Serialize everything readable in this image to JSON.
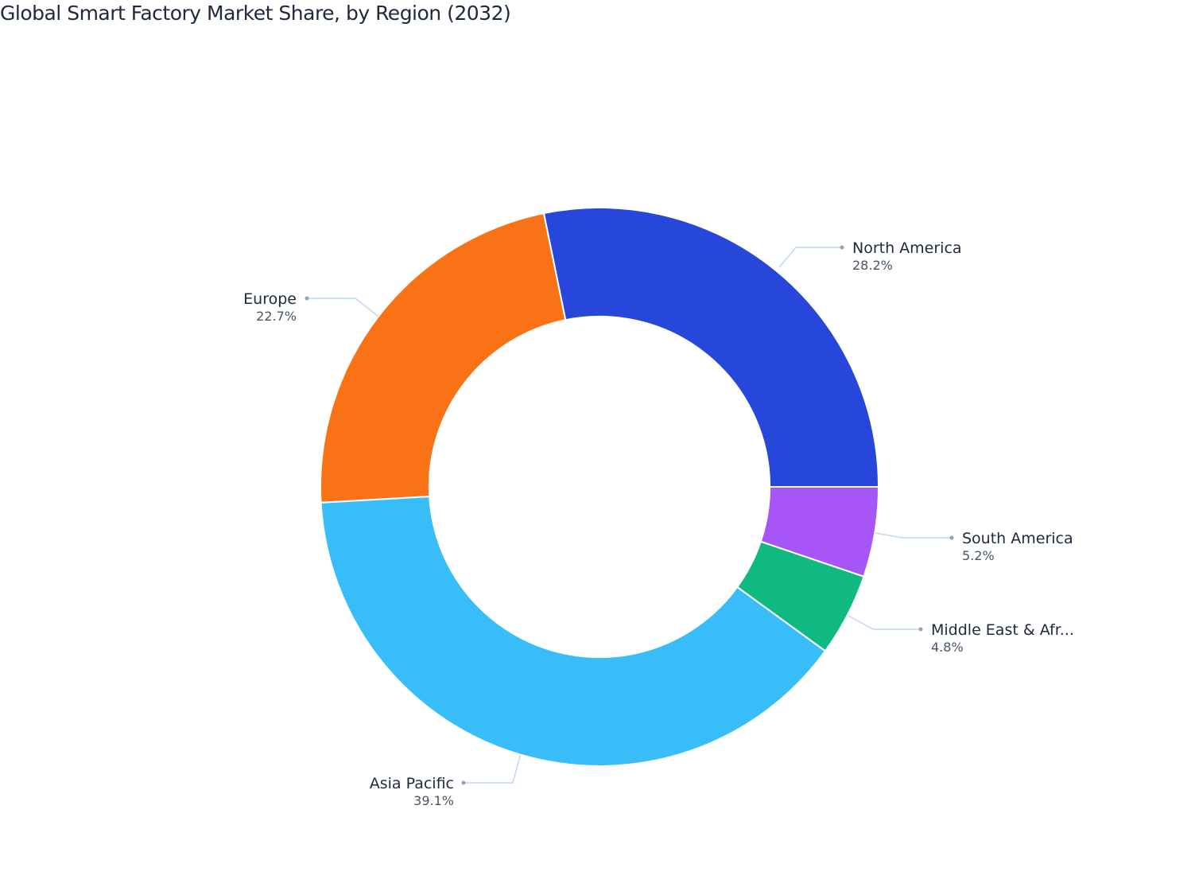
{
  "title": "Global Smart Factory Market Share, by Region (2032)",
  "chart_data": {
    "type": "pie",
    "subtype": "donut",
    "title": "Global Smart Factory Market Share, by Region (2032)",
    "categories": [
      "North America",
      "Europe",
      "Asia Pacific",
      "Middle East & Africa",
      "South America"
    ],
    "values": [
      28.2,
      22.7,
      39.1,
      4.8,
      5.2
    ],
    "unit": "%",
    "colors": [
      "#2746da",
      "#f97316",
      "#38bdf8",
      "#10b981",
      "#a855f7"
    ],
    "hole": 0.61,
    "start_angle_deg": 0,
    "direction": "counterclockwise",
    "legend": "none (outside labels with leader lines)"
  },
  "labels": [
    {
      "name": "North America",
      "display_name": "North America",
      "pct": "28.2%"
    },
    {
      "name": "Europe",
      "display_name": "Europe",
      "pct": "22.7%"
    },
    {
      "name": "Asia Pacific",
      "display_name": "Asia Pacific",
      "pct": "39.1%"
    },
    {
      "name": "Middle East & Africa",
      "display_name": "Middle East & Afr...",
      "pct": "4.8%"
    },
    {
      "name": "South America",
      "display_name": "South America",
      "pct": "5.2%"
    }
  ]
}
